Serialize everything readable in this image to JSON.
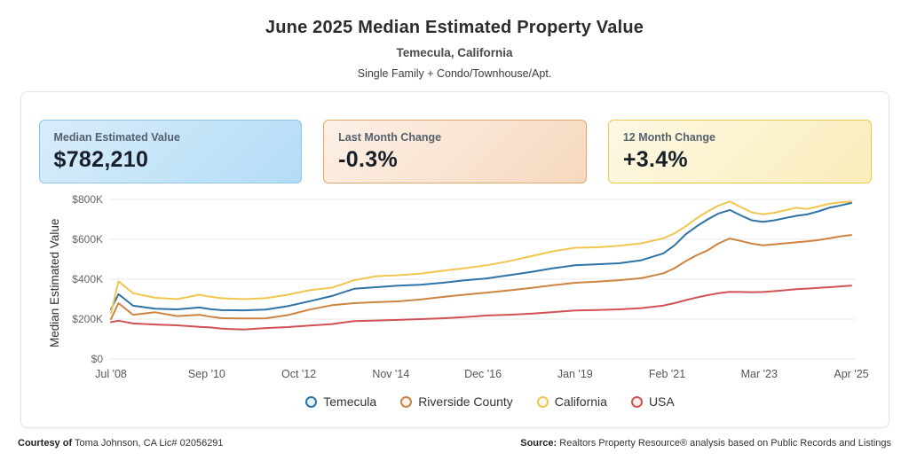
{
  "header": {
    "title": "June 2025 Median Estimated Property Value",
    "subtitle": "Temecula, California",
    "property_types": "Single Family + Condo/Townhouse/Apt."
  },
  "stats": [
    {
      "label": "Median Estimated Value",
      "value": "$782,210",
      "bg_from": "#d9edfb",
      "bg_to": "#b3dcf6",
      "border": "#8ec7ec"
    },
    {
      "label": "Last Month Change",
      "value": "-0.3%",
      "bg_from": "#fdf0e6",
      "bg_to": "#f6d8bf",
      "border": "#e5a868"
    },
    {
      "label": "12 Month Change",
      "value": "+3.4%",
      "bg_from": "#fdf8e3",
      "bg_to": "#faedbb",
      "border": "#ecca52"
    }
  ],
  "chart_data": {
    "type": "line",
    "ylabel": "Median Estimated Value",
    "units": "USD thousands",
    "ylim": [
      0,
      800
    ],
    "grid": "horizontal",
    "legend_position": "bottom",
    "y_ticks": [
      {
        "label": "$0",
        "value": 0
      },
      {
        "label": "$200K",
        "value": 200
      },
      {
        "label": "$400K",
        "value": 400
      },
      {
        "label": "$600K",
        "value": 600
      },
      {
        "label": "$800K",
        "value": 800
      }
    ],
    "x_ticks": [
      {
        "label": "Jul '08",
        "year": 2008.5
      },
      {
        "label": "Sep '10",
        "year": 2010.667
      },
      {
        "label": "Oct '12",
        "year": 2012.75
      },
      {
        "label": "Nov '14",
        "year": 2014.833
      },
      {
        "label": "Dec '16",
        "year": 2016.917
      },
      {
        "label": "Jan '19",
        "year": 2019.0
      },
      {
        "label": "Feb '21",
        "year": 2021.083
      },
      {
        "label": "Mar '23",
        "year": 2023.167
      },
      {
        "label": "Apr '25",
        "year": 2025.25
      }
    ],
    "x": [
      2008.5,
      2008.67,
      2009,
      2009.5,
      2010,
      2010.5,
      2010.75,
      2011,
      2011.5,
      2012,
      2012.5,
      2013,
      2013.5,
      2014,
      2014.5,
      2015,
      2015.5,
      2016,
      2016.5,
      2017,
      2017.5,
      2018,
      2018.5,
      2019,
      2019.5,
      2020,
      2020.5,
      2021,
      2021.25,
      2021.5,
      2021.75,
      2022,
      2022.25,
      2022.5,
      2022.75,
      2023,
      2023.25,
      2023.5,
      2024,
      2024.25,
      2024.5,
      2024.75,
      2025,
      2025.25
    ],
    "series": [
      {
        "name": "Temecula",
        "color": "#2C74A8",
        "values": [
          250,
          325,
          267,
          252,
          249,
          258,
          250,
          245,
          244,
          248,
          265,
          290,
          316,
          352,
          360,
          368,
          372,
          382,
          394,
          404,
          420,
          436,
          455,
          470,
          475,
          480,
          495,
          530,
          570,
          625,
          665,
          700,
          730,
          747,
          720,
          695,
          688,
          695,
          718,
          725,
          740,
          758,
          770,
          782
        ]
      },
      {
        "name": "Riverside County",
        "color": "#CD8440",
        "values": [
          200,
          280,
          222,
          234,
          215,
          222,
          212,
          205,
          203,
          204,
          220,
          248,
          270,
          280,
          285,
          289,
          298,
          311,
          322,
          333,
          344,
          356,
          370,
          382,
          388,
          395,
          405,
          430,
          455,
          490,
          520,
          545,
          580,
          604,
          592,
          578,
          570,
          575,
          585,
          590,
          596,
          605,
          615,
          622
        ]
      },
      {
        "name": "California",
        "color": "#F2C64E",
        "values": [
          230,
          390,
          330,
          307,
          300,
          322,
          312,
          305,
          300,
          305,
          322,
          345,
          358,
          395,
          415,
          420,
          428,
          442,
          455,
          470,
          490,
          515,
          540,
          558,
          560,
          568,
          580,
          605,
          630,
          665,
          705,
          740,
          770,
          790,
          762,
          735,
          726,
          733,
          758,
          752,
          765,
          778,
          785,
          790
        ]
      },
      {
        "name": "USA",
        "color": "#D15252",
        "values": [
          185,
          192,
          178,
          173,
          169,
          161,
          158,
          152,
          148,
          155,
          160,
          168,
          175,
          190,
          193,
          196,
          200,
          204,
          210,
          218,
          222,
          227,
          235,
          243,
          246,
          249,
          255,
          268,
          280,
          295,
          308,
          320,
          330,
          337,
          336,
          335,
          336,
          340,
          350,
          353,
          357,
          360,
          364,
          368
        ]
      }
    ]
  },
  "footer": {
    "courtesy_label": "Courtesy of",
    "courtesy_text": " Toma Johnson, CA Lic# 02056291",
    "source_label": "Source:",
    "source_text": " Realtors Property Resource® analysis based on Public Records and Listings"
  }
}
